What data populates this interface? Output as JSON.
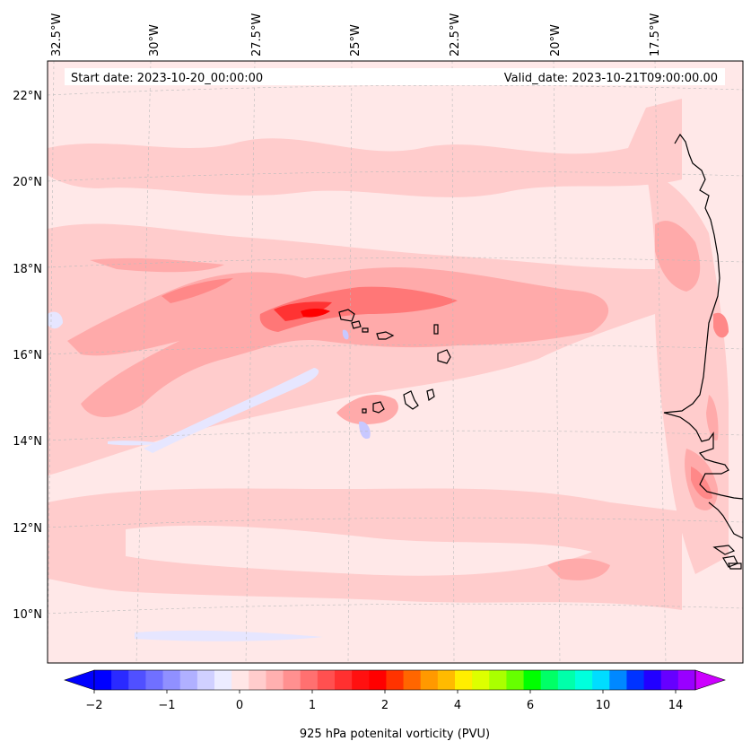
{
  "map": {
    "title_left": "Start date: 2023-10-20_00:00:00",
    "title_right": "Valid_date: 2023-10-21T09:00:00.00",
    "lon_labels": [
      "32.5°W",
      "30°W",
      "27.5°W",
      "25°W",
      "22.5°W",
      "20°W",
      "17.5°W"
    ],
    "lat_labels": [
      "22°N",
      "20°N",
      "18°N",
      "16°N",
      "14°N",
      "12°N",
      "10°N"
    ],
    "colors": {
      "background": "#ffe8e8",
      "light_pink": "#ffcccc",
      "pink": "#ffaaaa",
      "red_mid": "#ff7777",
      "red_strong": "#ff3333",
      "red_max": "#ff0000",
      "light_blue": "#e6e6ff",
      "blue": "#c8c8ff",
      "coast": "#000000",
      "grid": "#bbbbbb"
    }
  },
  "colorbar": {
    "label": "925 hPa potenital vorticity (PVU)",
    "tick_labels": [
      "−2",
      "−1",
      "0",
      "1",
      "2",
      "4",
      "6",
      "10",
      "14"
    ],
    "colors": [
      "#0000ff",
      "#2a2aff",
      "#5050ff",
      "#7070ff",
      "#9090ff",
      "#b0b0ff",
      "#d0d0ff",
      "#ececff",
      "#ffe6e6",
      "#ffcccc",
      "#ffb0b0",
      "#ff9090",
      "#ff7070",
      "#ff5050",
      "#ff3030",
      "#ff1010",
      "#ff0000",
      "#ff3300",
      "#ff6600",
      "#ff9900",
      "#ffbb00",
      "#ffee00",
      "#ddff00",
      "#aaff00",
      "#66ff00",
      "#00ff00",
      "#00ff66",
      "#00ffaa",
      "#00ffdd",
      "#00ddff",
      "#0088ff",
      "#0033ff",
      "#2200ff",
      "#6600ff",
      "#9900ff"
    ],
    "extend_low_color": "#0000ff",
    "extend_high_color": "#cc00ff"
  }
}
